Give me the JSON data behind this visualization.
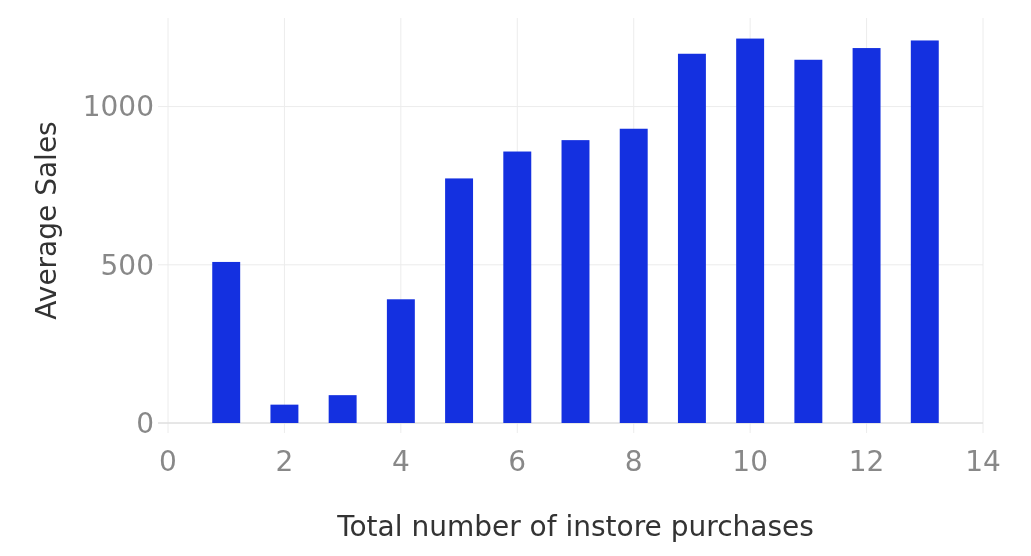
{
  "chart_data": {
    "type": "bar",
    "xlabel": "Total number of instore purchases",
    "ylabel": "Average Sales",
    "x": [
      1,
      2,
      3,
      4,
      5,
      6,
      7,
      8,
      9,
      10,
      11,
      12,
      13
    ],
    "values": [
      509,
      58,
      88,
      391,
      773,
      858,
      894,
      930,
      1167,
      1215,
      1148,
      1185,
      1209
    ],
    "color": "#1430e0",
    "xlim": [
      0,
      14
    ],
    "xticks": [
      0,
      2,
      4,
      6,
      8,
      10,
      12,
      14
    ],
    "ylim": [
      0,
      1280
    ],
    "yticks": [
      0,
      500,
      1000
    ],
    "grid": true
  }
}
